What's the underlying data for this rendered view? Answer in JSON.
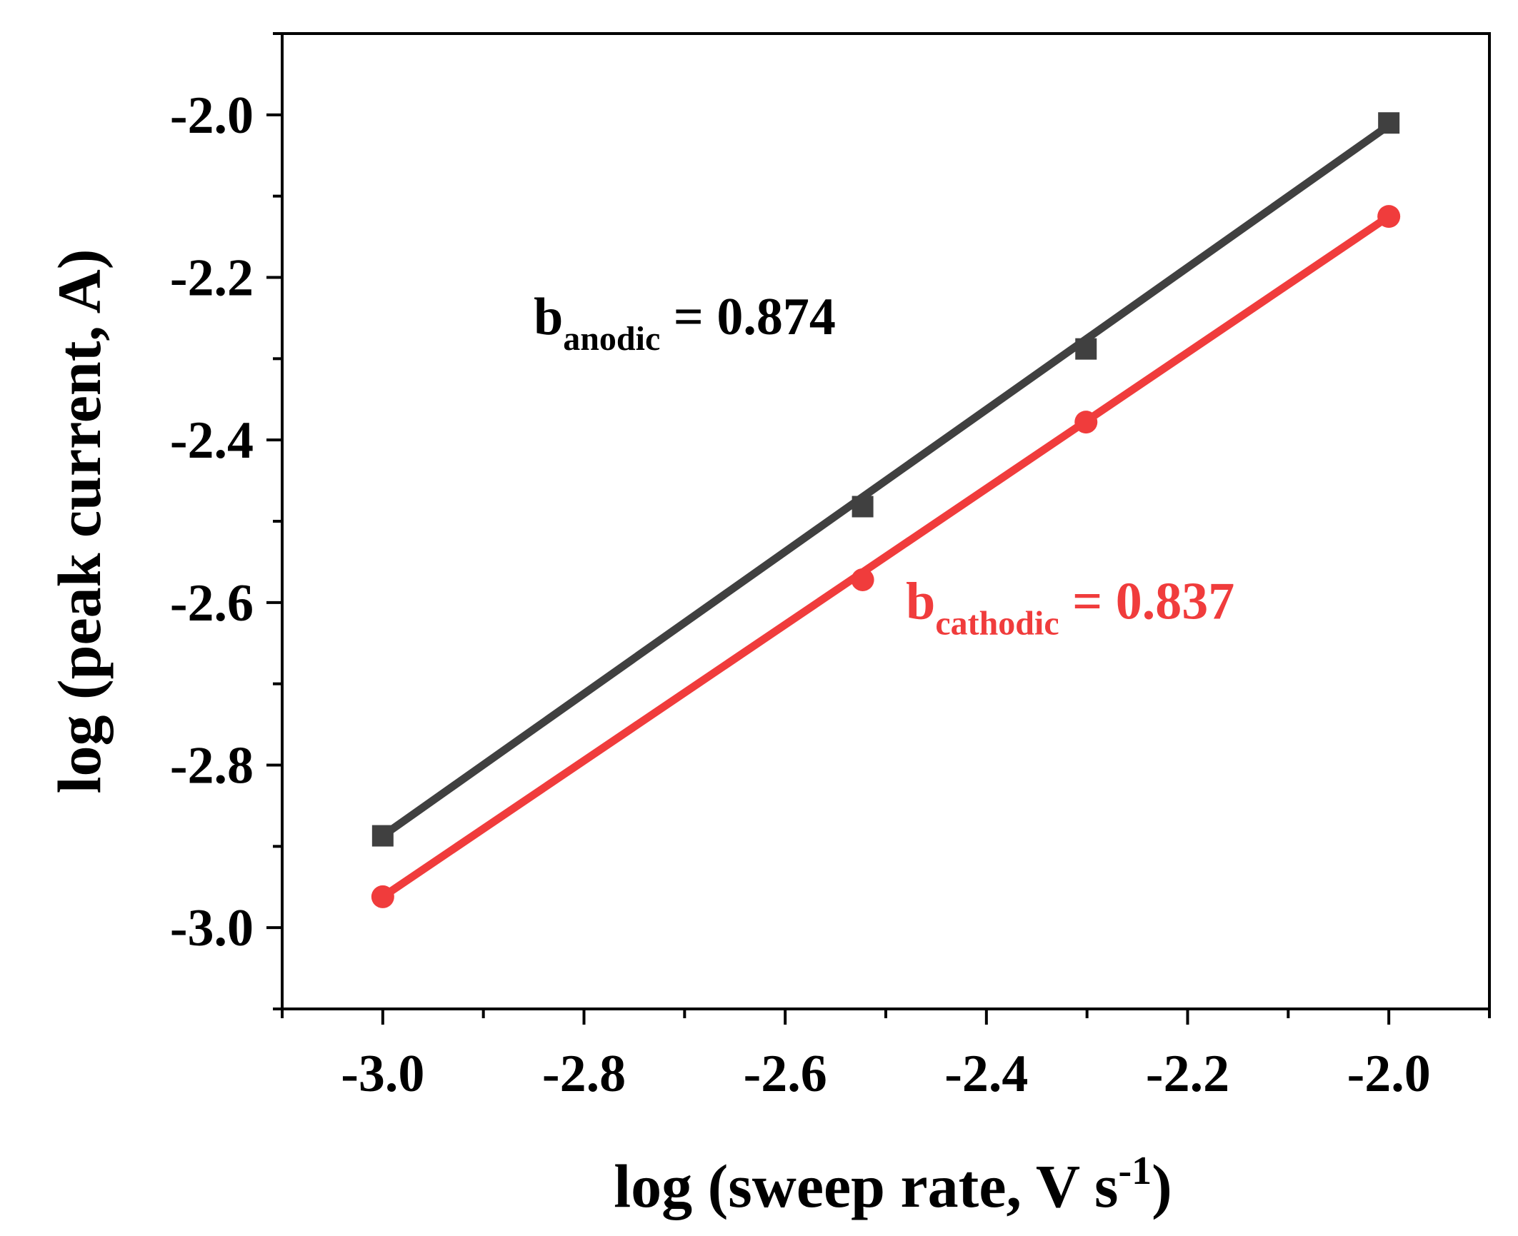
{
  "chart_data": {
    "type": "scatter",
    "title": "",
    "xlabel": "log (sweep rate, V s",
    "xlabel_sup": "-1",
    "xlabel_tail": ")",
    "ylabel": "log (peak current, A)",
    "xlim": [
      -3.1,
      -1.9
    ],
    "ylim": [
      -3.1,
      -1.9
    ],
    "x_ticks": [
      -3.0,
      -2.8,
      -2.6,
      -2.4,
      -2.2,
      -2.0
    ],
    "x_tick_labels": [
      "-3.0",
      "-2.8",
      "-2.6",
      "-2.4",
      "-2.2",
      "-2.0"
    ],
    "y_ticks": [
      -3.0,
      -2.8,
      -2.6,
      -2.4,
      -2.2,
      -2.0
    ],
    "y_tick_labels": [
      "-3.0",
      "-2.8",
      "-2.6",
      "-2.4",
      "-2.2",
      "-2.0"
    ],
    "series": [
      {
        "name": "anodic",
        "marker": "square",
        "color": "#404040",
        "x": [
          -3.0,
          -2.523,
          -2.301,
          -2.0
        ],
        "y": [
          -2.887,
          -2.482,
          -2.288,
          -2.01
        ],
        "fit": {
          "x": [
            -3.0,
            -2.0
          ],
          "y": [
            -2.887,
            -2.013
          ]
        },
        "annotation": {
          "base": "b",
          "sub": "anodic",
          "rest": " = 0.874",
          "at": [
            -2.85,
            -2.27
          ]
        }
      },
      {
        "name": "cathodic",
        "marker": "circle",
        "color": "#f03c3c",
        "x": [
          -3.0,
          -2.523,
          -2.301,
          -2.0
        ],
        "y": [
          -2.962,
          -2.572,
          -2.378,
          -2.125
        ],
        "fit": {
          "x": [
            -3.0,
            -2.0
          ],
          "y": [
            -2.962,
            -2.125
          ]
        },
        "annotation": {
          "base": "b",
          "sub": "cathodic",
          "rest": " = 0.837",
          "at": [
            -2.48,
            -2.62
          ]
        }
      }
    ]
  }
}
